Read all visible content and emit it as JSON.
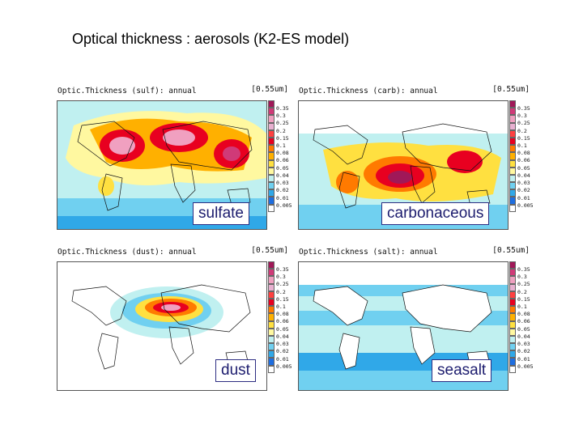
{
  "slide": {
    "title": "Optical thickness : aerosols  (K2-ES model)"
  },
  "panels": [
    {
      "id": "sulf",
      "header": "Optic.Thickness (sulf): annual",
      "wavelength": "[0.55um]",
      "label": "sulfate",
      "position": "top-left"
    },
    {
      "id": "carb",
      "header": "Optic.Thickness (carb): annual",
      "wavelength": "[0.55um]",
      "label": "carbonaceous",
      "position": "top-right"
    },
    {
      "id": "dust",
      "header": "Optic.Thickness (dust): annual",
      "wavelength": "[0.55um]",
      "label": "dust",
      "position": "bottom-left"
    },
    {
      "id": "salt",
      "header": "Optic.Thickness (salt): annual",
      "wavelength": "[0.55um]",
      "label": "seasalt",
      "position": "bottom-right"
    }
  ],
  "colorbar": {
    "labels": [
      "0.35",
      "0.3",
      "0.25",
      "0.2",
      "0.15",
      "0.1",
      "0.08",
      "0.06",
      "0.05",
      "0.04",
      "0.03",
      "0.02",
      "0.01",
      "0.005"
    ],
    "colors": [
      "#a01858",
      "#d03a78",
      "#f0a0c0",
      "#e8b0d0",
      "#ff4040",
      "#e80020",
      "#ff7a00",
      "#ffb000",
      "#ffe040",
      "#fff8a0",
      "#c0f0f0",
      "#70d0f0",
      "#30a8e8",
      "#1e6ee0",
      "#ffffff"
    ]
  }
}
